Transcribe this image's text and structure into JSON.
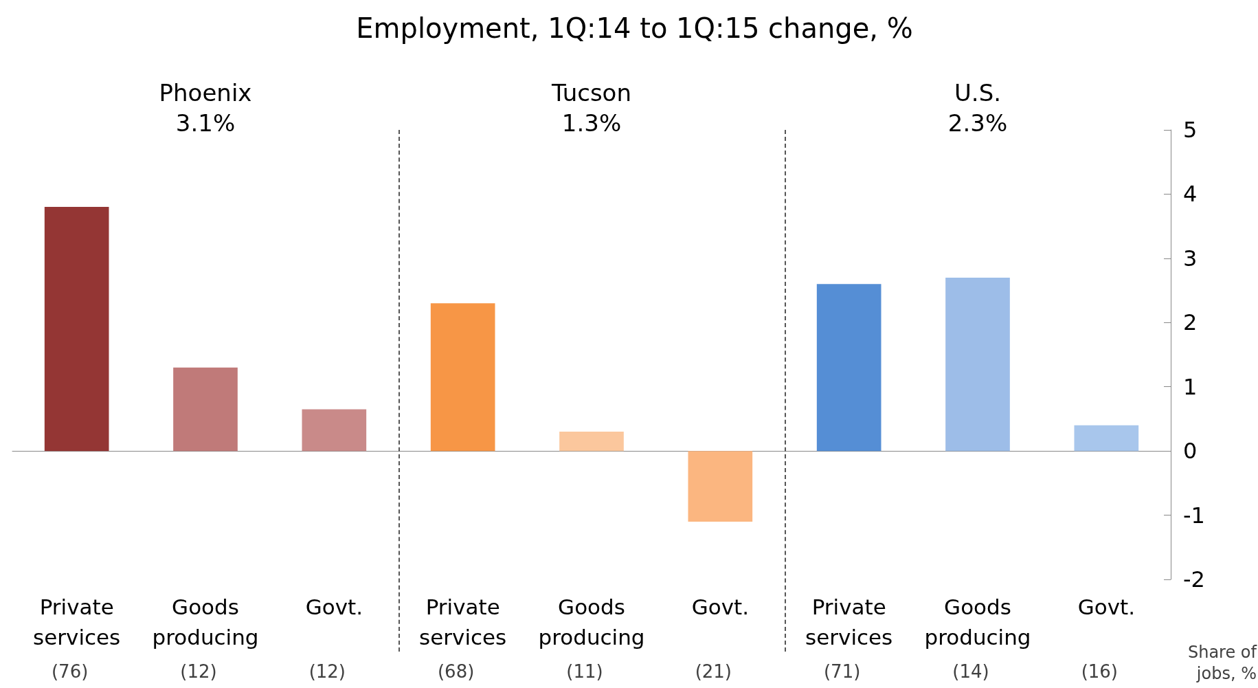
{
  "chart_data": {
    "type": "bar",
    "title": "Employment, 1Q:14 to 1Q:15 change, %",
    "categories": [
      "Private\nservices",
      "Goods\nproducing",
      "Govt.",
      "Private\nservices",
      "Goods\nproducing",
      "Govt.",
      "Private\nservices",
      "Goods\nproducing",
      "Govt."
    ],
    "values": [
      3.8,
      1.3,
      0.65,
      2.3,
      0.3,
      -1.1,
      2.6,
      2.7,
      0.4
    ],
    "colors": [
      "#943634",
      "#c07a79",
      "#c98a89",
      "#f79646",
      "#fbc79d",
      "#fbb680",
      "#558ed5",
      "#9dbde8",
      "#a8c6ec"
    ],
    "ylim": [
      -2,
      5
    ],
    "yticks": [
      -2,
      -1,
      0,
      1,
      2,
      3,
      4,
      5
    ],
    "grid": false,
    "annotations": [
      "Phoenix\n3.1%",
      "Tucson\n1.3%",
      "U.S.\n2.3%",
      "(76)",
      "(12)",
      "(12)",
      "(68)",
      "(11)",
      "(21)",
      "(71)",
      "(14)",
      "(16)",
      "Share of\njobs, %"
    ]
  }
}
